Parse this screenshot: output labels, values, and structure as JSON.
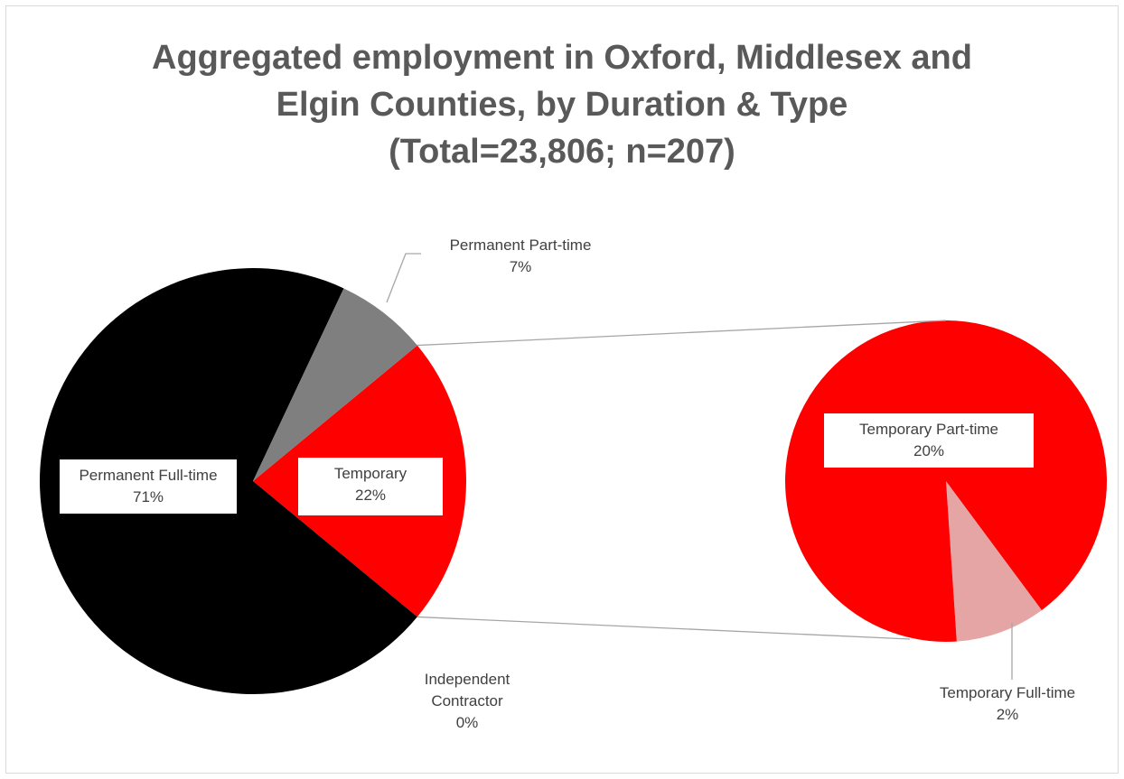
{
  "chart_data": {
    "type": "pie",
    "subtype": "pie-of-pie",
    "title": [
      "Aggregated employment in Oxford, Middlesex and",
      "Elgin Counties, by Duration & Type",
      "(Total=23,806; n=207)"
    ],
    "main_pie": {
      "slices": [
        {
          "label": "Permanent Full-time",
          "value": 71,
          "value_text": "71%",
          "color": "#000000"
        },
        {
          "label": "Permanent Part-time",
          "value": 7,
          "value_text": "7%",
          "color": "#7f7f7f"
        },
        {
          "label": "Temporary",
          "value": 22,
          "value_text": "22%",
          "color": "#ff0000"
        },
        {
          "label": "Independent Contractor",
          "value": 0,
          "value_text": "0%",
          "color": "#ffffff"
        }
      ]
    },
    "secondary_pie": {
      "slices": [
        {
          "label": "Temporary Part-time",
          "value": 20,
          "value_text": "20%",
          "color": "#ff0000"
        },
        {
          "label": "Temporary Full-time",
          "value": 2,
          "value_text": "2%",
          "color": "#e6a5a5"
        }
      ]
    },
    "legend": "none"
  },
  "labels": {
    "perm_ft_name": "Permanent Full-time",
    "perm_ft_value": "71%",
    "perm_pt_name": "Permanent Part-time",
    "perm_pt_value": "7%",
    "temporary_name": "Temporary",
    "temporary_value": "22%",
    "indep_line1": "Independent",
    "indep_line2": "Contractor",
    "indep_value": "0%",
    "temp_pt_name": "Temporary Part-time",
    "temp_pt_value": "20%",
    "temp_ft_name": "Temporary Full-time",
    "temp_ft_value": "2%"
  }
}
